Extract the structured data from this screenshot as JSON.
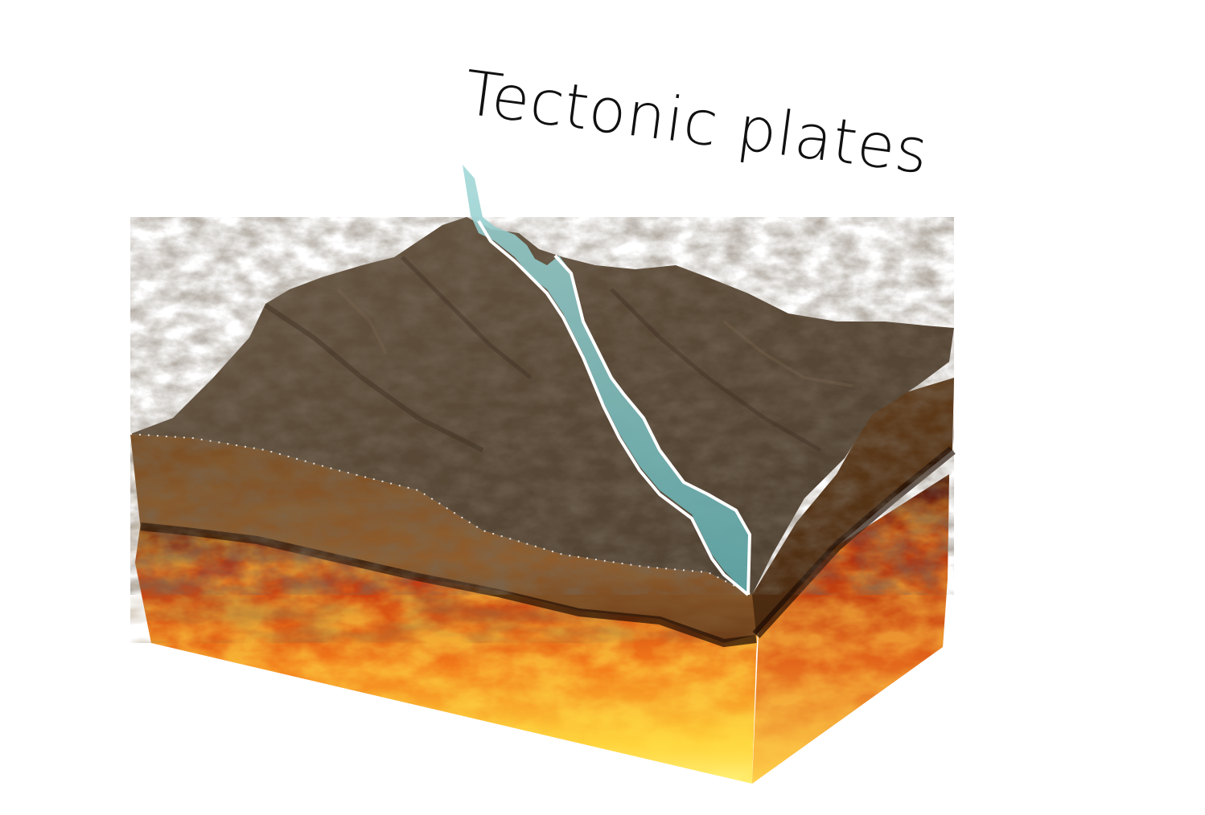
{
  "title": "Tectonic plates",
  "colors": {
    "background": "#ffffff",
    "terrain": "#5e4d3c",
    "soil": "#8a5a2b",
    "magma_dark": "#b8260c",
    "magma_light": "#ffe04a",
    "fault_plane": "#7fc0c2",
    "fault_outline": "#ffffff",
    "title_text": "#111111"
  },
  "layers": [
    "terrain-surface",
    "soil-crust",
    "magma-mantle",
    "fault-plane"
  ]
}
